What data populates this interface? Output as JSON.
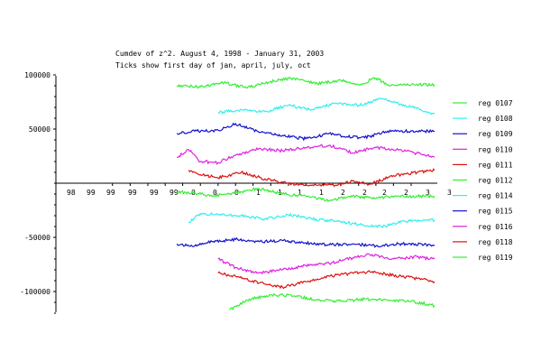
{
  "chart_data": {
    "type": "line",
    "title": "Cumdev of z^2.  August 4, 1998 - January 31, 2003",
    "subtitle": "Ticks show first day of jan, april, july, oct",
    "xlabel": "",
    "ylabel": "",
    "x_range": [
      "1998-08-04",
      "2003-01-31"
    ],
    "ylim": [
      -120000,
      110000
    ],
    "y_ticks": [
      -100000,
      -50000,
      50000,
      100000
    ],
    "y_tick_labels": [
      "-100000",
      "-50000",
      "50000",
      "100000"
    ],
    "x_tick_labels": [
      "98",
      "99",
      "99",
      "99",
      "99",
      "99",
      "0",
      "0",
      "0",
      "1",
      "1",
      "1",
      "1",
      "2",
      "2",
      "2",
      "2",
      "3",
      "3"
    ],
    "grid": false,
    "legend_position": "right",
    "series": [
      {
        "name": "reg 0107",
        "color": "#33ee33",
        "x": [
          "1999-06-01",
          "1999-10-01",
          "2000-02-01",
          "2000-06-01",
          "2000-10-01",
          "2001-02-01",
          "2001-06-01",
          "2001-10-01",
          "2002-01-01",
          "2002-04-01",
          "2002-06-01",
          "2003-01-31"
        ],
        "values": [
          90000,
          89000,
          93000,
          88000,
          94000,
          97000,
          92000,
          95000,
          91000,
          97000,
          91000,
          91000
        ]
      },
      {
        "name": "reg 0108",
        "color": "#33eeee",
        "x": [
          "2000-01-01",
          "2000-05-01",
          "2000-09-01",
          "2001-01-01",
          "2001-05-01",
          "2001-09-01",
          "2002-01-01",
          "2002-05-01",
          "2002-09-01",
          "2003-01-31"
        ],
        "values": [
          65000,
          68000,
          66000,
          72000,
          68000,
          74000,
          72000,
          78000,
          72000,
          64000
        ]
      },
      {
        "name": "reg 0109",
        "color": "#1111cc",
        "x": [
          "1999-06-01",
          "1999-09-01",
          "2000-01-01",
          "2000-04-01",
          "2000-08-01",
          "2000-12-01",
          "2001-04-01",
          "2001-08-01",
          "2001-11-01",
          "2002-02-01",
          "2002-06-01",
          "2003-01-31"
        ],
        "values": [
          46000,
          48000,
          49000,
          55000,
          47000,
          44000,
          41000,
          46000,
          43000,
          42000,
          48000,
          48000
        ]
      },
      {
        "name": "reg 0110",
        "color": "#dd22dd",
        "x": [
          "1999-06-01",
          "1999-08-01",
          "1999-10-01",
          "2000-01-01",
          "2000-04-01",
          "2000-08-01",
          "2000-12-01",
          "2001-04-01",
          "2001-08-01",
          "2001-12-01",
          "2002-04-01",
          "2002-08-01",
          "2003-01-31"
        ],
        "values": [
          24000,
          31000,
          20000,
          19000,
          26000,
          32000,
          30000,
          33000,
          35000,
          28000,
          33000,
          31000,
          24000
        ]
      },
      {
        "name": "reg 0111",
        "color": "#dd1111",
        "x": [
          "1999-08-01",
          "1999-10-01",
          "2000-01-01",
          "2000-05-01",
          "2000-09-01",
          "2001-01-01",
          "2001-05-01",
          "2001-09-01",
          "2001-12-01",
          "2002-03-01",
          "2002-07-01",
          "2002-11-01",
          "2003-01-31"
        ],
        "values": [
          12000,
          8000,
          5000,
          10000,
          4000,
          0,
          -2000,
          -2000,
          2000,
          -1000,
          7000,
          10000,
          12000
        ]
      },
      {
        "name": "reg 0112",
        "color": "#33ee33",
        "x": [
          "1999-06-01",
          "1999-09-01",
          "1999-12-01",
          "2000-04-01",
          "2000-08-01",
          "2000-12-01",
          "2001-04-01",
          "2001-08-01",
          "2001-12-01",
          "2002-04-01",
          "2002-08-01",
          "2003-01-31"
        ],
        "values": [
          -8000,
          -9000,
          -12000,
          -9000,
          -5000,
          -10000,
          -12000,
          -16000,
          -12000,
          -14000,
          -12000,
          -12000
        ]
      },
      {
        "name": "reg 0114",
        "color": "#33eeee",
        "x": [
          "1999-08-01",
          "1999-10-01",
          "2000-01-01",
          "2000-05-01",
          "2000-09-01",
          "2001-01-01",
          "2001-05-01",
          "2001-09-01",
          "2002-01-01",
          "2002-05-01",
          "2002-09-01",
          "2003-01-31"
        ],
        "values": [
          -36000,
          -28000,
          -29000,
          -30000,
          -33000,
          -29000,
          -33000,
          -35000,
          -38000,
          -40000,
          -35000,
          -34000
        ]
      },
      {
        "name": "reg 0115",
        "color": "#1111cc",
        "x": [
          "1999-06-01",
          "1999-09-01",
          "1999-12-01",
          "2000-04-01",
          "2000-08-01",
          "2000-12-01",
          "2001-04-01",
          "2001-08-01",
          "2001-12-01",
          "2002-04-01",
          "2002-08-01",
          "2003-01-31"
        ],
        "values": [
          -56000,
          -58000,
          -54000,
          -52000,
          -54000,
          -53000,
          -55000,
          -57000,
          -56000,
          -58000,
          -56000,
          -57000
        ]
      },
      {
        "name": "reg 0116",
        "color": "#dd22dd",
        "x": [
          "2000-01-01",
          "2000-04-01",
          "2000-08-01",
          "2000-12-01",
          "2001-04-01",
          "2001-08-01",
          "2001-12-01",
          "2002-03-01",
          "2002-07-01",
          "2002-11-01",
          "2003-01-31"
        ],
        "values": [
          -70000,
          -78000,
          -83000,
          -80000,
          -76000,
          -74000,
          -69000,
          -66000,
          -70000,
          -68000,
          -70000
        ]
      },
      {
        "name": "reg 0118",
        "color": "#dd1111",
        "x": [
          "2000-01-01",
          "2000-04-01",
          "2000-08-01",
          "2000-12-01",
          "2001-04-01",
          "2001-08-01",
          "2001-12-01",
          "2002-03-01",
          "2002-07-01",
          "2002-11-01",
          "2003-01-31"
        ],
        "values": [
          -83000,
          -86000,
          -92000,
          -96000,
          -91000,
          -86000,
          -83000,
          -82000,
          -85000,
          -88000,
          -91000
        ]
      },
      {
        "name": "reg 0119",
        "color": "#33ee33",
        "x": [
          "2000-03-01",
          "2000-06-01",
          "2000-10-01",
          "2001-02-01",
          "2001-06-01",
          "2001-10-01",
          "2002-02-01",
          "2002-06-01",
          "2002-10-01",
          "2003-01-31"
        ],
        "values": [
          -117000,
          -108000,
          -103000,
          -104000,
          -108000,
          -109000,
          -107000,
          -108000,
          -109000,
          -113000
        ]
      }
    ]
  }
}
